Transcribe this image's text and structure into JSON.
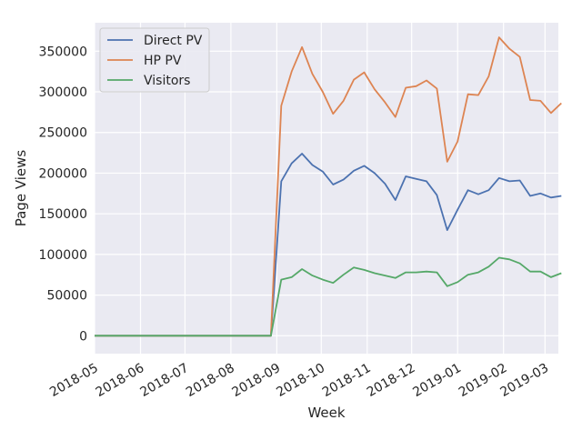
{
  "chart_data": {
    "type": "line",
    "title": "",
    "xlabel": "Week",
    "ylabel": "Page Views",
    "grid": true,
    "legend_position": "top-left",
    "xlim": [
      "2018-05-01",
      "2019-03-10"
    ],
    "ylim": [
      -22000,
      385000
    ],
    "x_ticks": [
      "2018-05",
      "2018-06",
      "2018-07",
      "2018-08",
      "2018-09",
      "2018-10",
      "2018-11",
      "2018-12",
      "2019-01",
      "2019-02",
      "2019-03"
    ],
    "y_ticks": [
      "0",
      "50000",
      "100000",
      "150000",
      "200000",
      "250000",
      "300000",
      "350000"
    ],
    "x": [
      "2018-05-01",
      "2018-05-08",
      "2018-05-15",
      "2018-05-22",
      "2018-05-29",
      "2018-06-05",
      "2018-06-12",
      "2018-06-19",
      "2018-06-26",
      "2018-07-03",
      "2018-07-10",
      "2018-07-17",
      "2018-07-24",
      "2018-07-31",
      "2018-08-07",
      "2018-08-14",
      "2018-08-21",
      "2018-08-28",
      "2018-09-04",
      "2018-09-11",
      "2018-09-18",
      "2018-09-25",
      "2018-10-02",
      "2018-10-09",
      "2018-10-16",
      "2018-10-23",
      "2018-10-30",
      "2018-11-06",
      "2018-11-13",
      "2018-11-20",
      "2018-11-27",
      "2018-12-04",
      "2018-12-11",
      "2018-12-18",
      "2018-12-25",
      "2019-01-01",
      "2019-01-08",
      "2019-01-15",
      "2019-01-22",
      "2019-01-29",
      "2019-02-05",
      "2019-02-12",
      "2019-02-19",
      "2019-02-26",
      "2019-03-05",
      "2019-03-12"
    ],
    "series": [
      {
        "name": "Direct PV",
        "color": "#4c72b0",
        "values": [
          0,
          0,
          0,
          0,
          0,
          0,
          0,
          0,
          0,
          0,
          0,
          0,
          0,
          0,
          0,
          0,
          0,
          0,
          190000,
          212000,
          224000,
          210000,
          202000,
          186000,
          192000,
          203000,
          209000,
          200000,
          187000,
          167000,
          196000,
          193000,
          190000,
          173000,
          130000,
          155000,
          179000,
          174000,
          179000,
          194000,
          190000,
          191000,
          172000,
          175000,
          170000,
          172000
        ]
      },
      {
        "name": "HP PV",
        "color": "#dd8452",
        "values": [
          0,
          0,
          0,
          0,
          0,
          0,
          0,
          0,
          0,
          0,
          0,
          0,
          0,
          0,
          0,
          0,
          0,
          0,
          283000,
          325000,
          355000,
          322000,
          300000,
          273000,
          289000,
          315000,
          324000,
          303000,
          287000,
          269000,
          305000,
          307000,
          314000,
          304000,
          214000,
          239000,
          297000,
          296000,
          319000,
          367000,
          353000,
          343000,
          290000,
          289000,
          274000,
          286000
        ]
      },
      {
        "name": "Visitors",
        "color": "#55a868",
        "values": [
          0,
          0,
          0,
          0,
          0,
          0,
          0,
          0,
          0,
          0,
          0,
          0,
          0,
          0,
          0,
          0,
          0,
          0,
          69000,
          72000,
          82000,
          74000,
          69000,
          65000,
          75000,
          84000,
          81000,
          77000,
          74000,
          71000,
          78000,
          78000,
          79000,
          78000,
          61000,
          66000,
          75000,
          78000,
          85000,
          96000,
          94000,
          89000,
          79000,
          79000,
          72000,
          77000
        ]
      }
    ]
  }
}
